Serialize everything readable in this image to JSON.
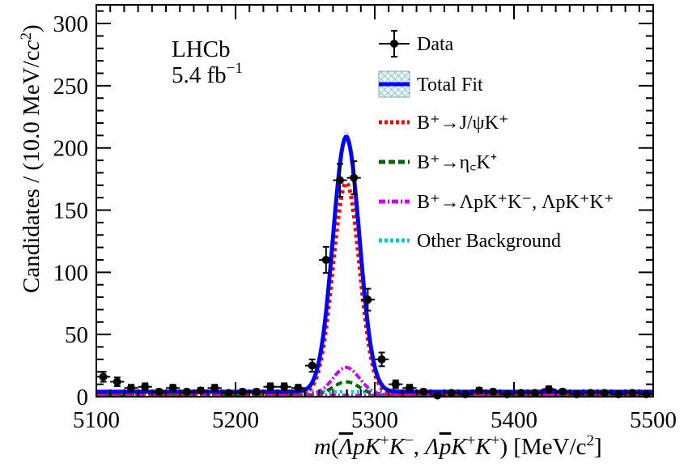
{
  "chart_data": {
    "type": "line",
    "experiment": "LHCb",
    "luminosity": "5.4 fb",
    "luminosity_exp": "−1",
    "xlabel_parts": {
      "m": "m",
      "open": "(",
      "lambda": "Λ",
      "rest1": "pK",
      "plus1": "+",
      "k": "K",
      "minus": "−",
      "comma": ", ",
      "lambda2": "Λ",
      "pbar": "p",
      "rest2": "K",
      "plus2": "+",
      "k2": "K",
      "plus3": "+",
      "close": ")",
      "unit": " [MeV/c",
      "sq": "2",
      "end": "]"
    },
    "ylabel": "Candidates / (10.0 MeV/c",
    "ylabel_sup": "2",
    "ylabel_end": ")",
    "xlim": [
      5100,
      5500
    ],
    "ylim": [
      0,
      315
    ],
    "x_ticks": [
      5100,
      5200,
      5300,
      5400,
      5500
    ],
    "y_ticks": [
      0,
      50,
      100,
      150,
      200,
      250,
      300
    ],
    "legend": [
      {
        "label": "Data",
        "style": "data",
        "color": "#000000"
      },
      {
        "label": "Total Fit",
        "style": "solid-band",
        "color": "#0000ff"
      },
      {
        "label": "B⁺→J/ψK⁺",
        "style": "dotted",
        "color": "#ff0000"
      },
      {
        "label": "B⁺→η꜀K⁺",
        "style": "dashed",
        "color": "#006400"
      },
      {
        "label": "B⁺→ΛpK⁺K⁻, ΛpK⁺K⁺",
        "style": "dashdot",
        "color": "#cc00ff"
      },
      {
        "label": "Other Background",
        "style": "dotted",
        "color": "#00cccc"
      }
    ],
    "data_points": [
      {
        "x": 5105,
        "y": 16,
        "err": 4
      },
      {
        "x": 5115,
        "y": 12,
        "err": 3.5
      },
      {
        "x": 5125,
        "y": 7,
        "err": 2.6
      },
      {
        "x": 5135,
        "y": 8,
        "err": 2.8
      },
      {
        "x": 5145,
        "y": 4,
        "err": 2
      },
      {
        "x": 5155,
        "y": 7,
        "err": 2.6
      },
      {
        "x": 5165,
        "y": 4,
        "err": 2
      },
      {
        "x": 5175,
        "y": 5,
        "err": 2.2
      },
      {
        "x": 5185,
        "y": 7,
        "err": 2.6
      },
      {
        "x": 5195,
        "y": 3,
        "err": 1.7
      },
      {
        "x": 5205,
        "y": 4,
        "err": 2
      },
      {
        "x": 5215,
        "y": 4,
        "err": 2
      },
      {
        "x": 5225,
        "y": 8,
        "err": 2.8
      },
      {
        "x": 5235,
        "y": 8,
        "err": 2.8
      },
      {
        "x": 5245,
        "y": 7,
        "err": 2.6
      },
      {
        "x": 5255,
        "y": 25,
        "err": 5
      },
      {
        "x": 5265,
        "y": 110,
        "err": 10.5
      },
      {
        "x": 5275,
        "y": 174,
        "err": 13.2
      },
      {
        "x": 5285,
        "y": 176,
        "err": 13.3
      },
      {
        "x": 5295,
        "y": 78,
        "err": 8.8
      },
      {
        "x": 5305,
        "y": 30,
        "err": 5.5
      },
      {
        "x": 5315,
        "y": 10,
        "err": 3.2
      },
      {
        "x": 5325,
        "y": 7,
        "err": 2.6
      },
      {
        "x": 5335,
        "y": 4,
        "err": 2
      },
      {
        "x": 5345,
        "y": 1,
        "err": 1
      },
      {
        "x": 5355,
        "y": 3,
        "err": 1.7
      },
      {
        "x": 5365,
        "y": 2,
        "err": 1.4
      },
      {
        "x": 5375,
        "y": 5,
        "err": 2.2
      },
      {
        "x": 5385,
        "y": 4,
        "err": 2
      },
      {
        "x": 5395,
        "y": 2,
        "err": 1.4
      },
      {
        "x": 5405,
        "y": 3,
        "err": 1.7
      },
      {
        "x": 5415,
        "y": 3,
        "err": 1.7
      },
      {
        "x": 5425,
        "y": 6,
        "err": 2.4
      },
      {
        "x": 5435,
        "y": 4,
        "err": 2
      },
      {
        "x": 5445,
        "y": 2,
        "err": 1.4
      },
      {
        "x": 5455,
        "y": 3,
        "err": 1.7
      },
      {
        "x": 5465,
        "y": 3,
        "err": 1.7
      },
      {
        "x": 5475,
        "y": 2,
        "err": 1.4
      },
      {
        "x": 5485,
        "y": 3,
        "err": 1.7
      },
      {
        "x": 5495,
        "y": 2,
        "err": 1.4
      }
    ],
    "components": {
      "peak_mean": 5279.5,
      "peak_sigma": 9.5,
      "total_amplitude": 205,
      "jpsi_amplitude": 170,
      "etac_amplitude": 11,
      "lambda_amplitude": 22,
      "other_background": 4
    }
  }
}
